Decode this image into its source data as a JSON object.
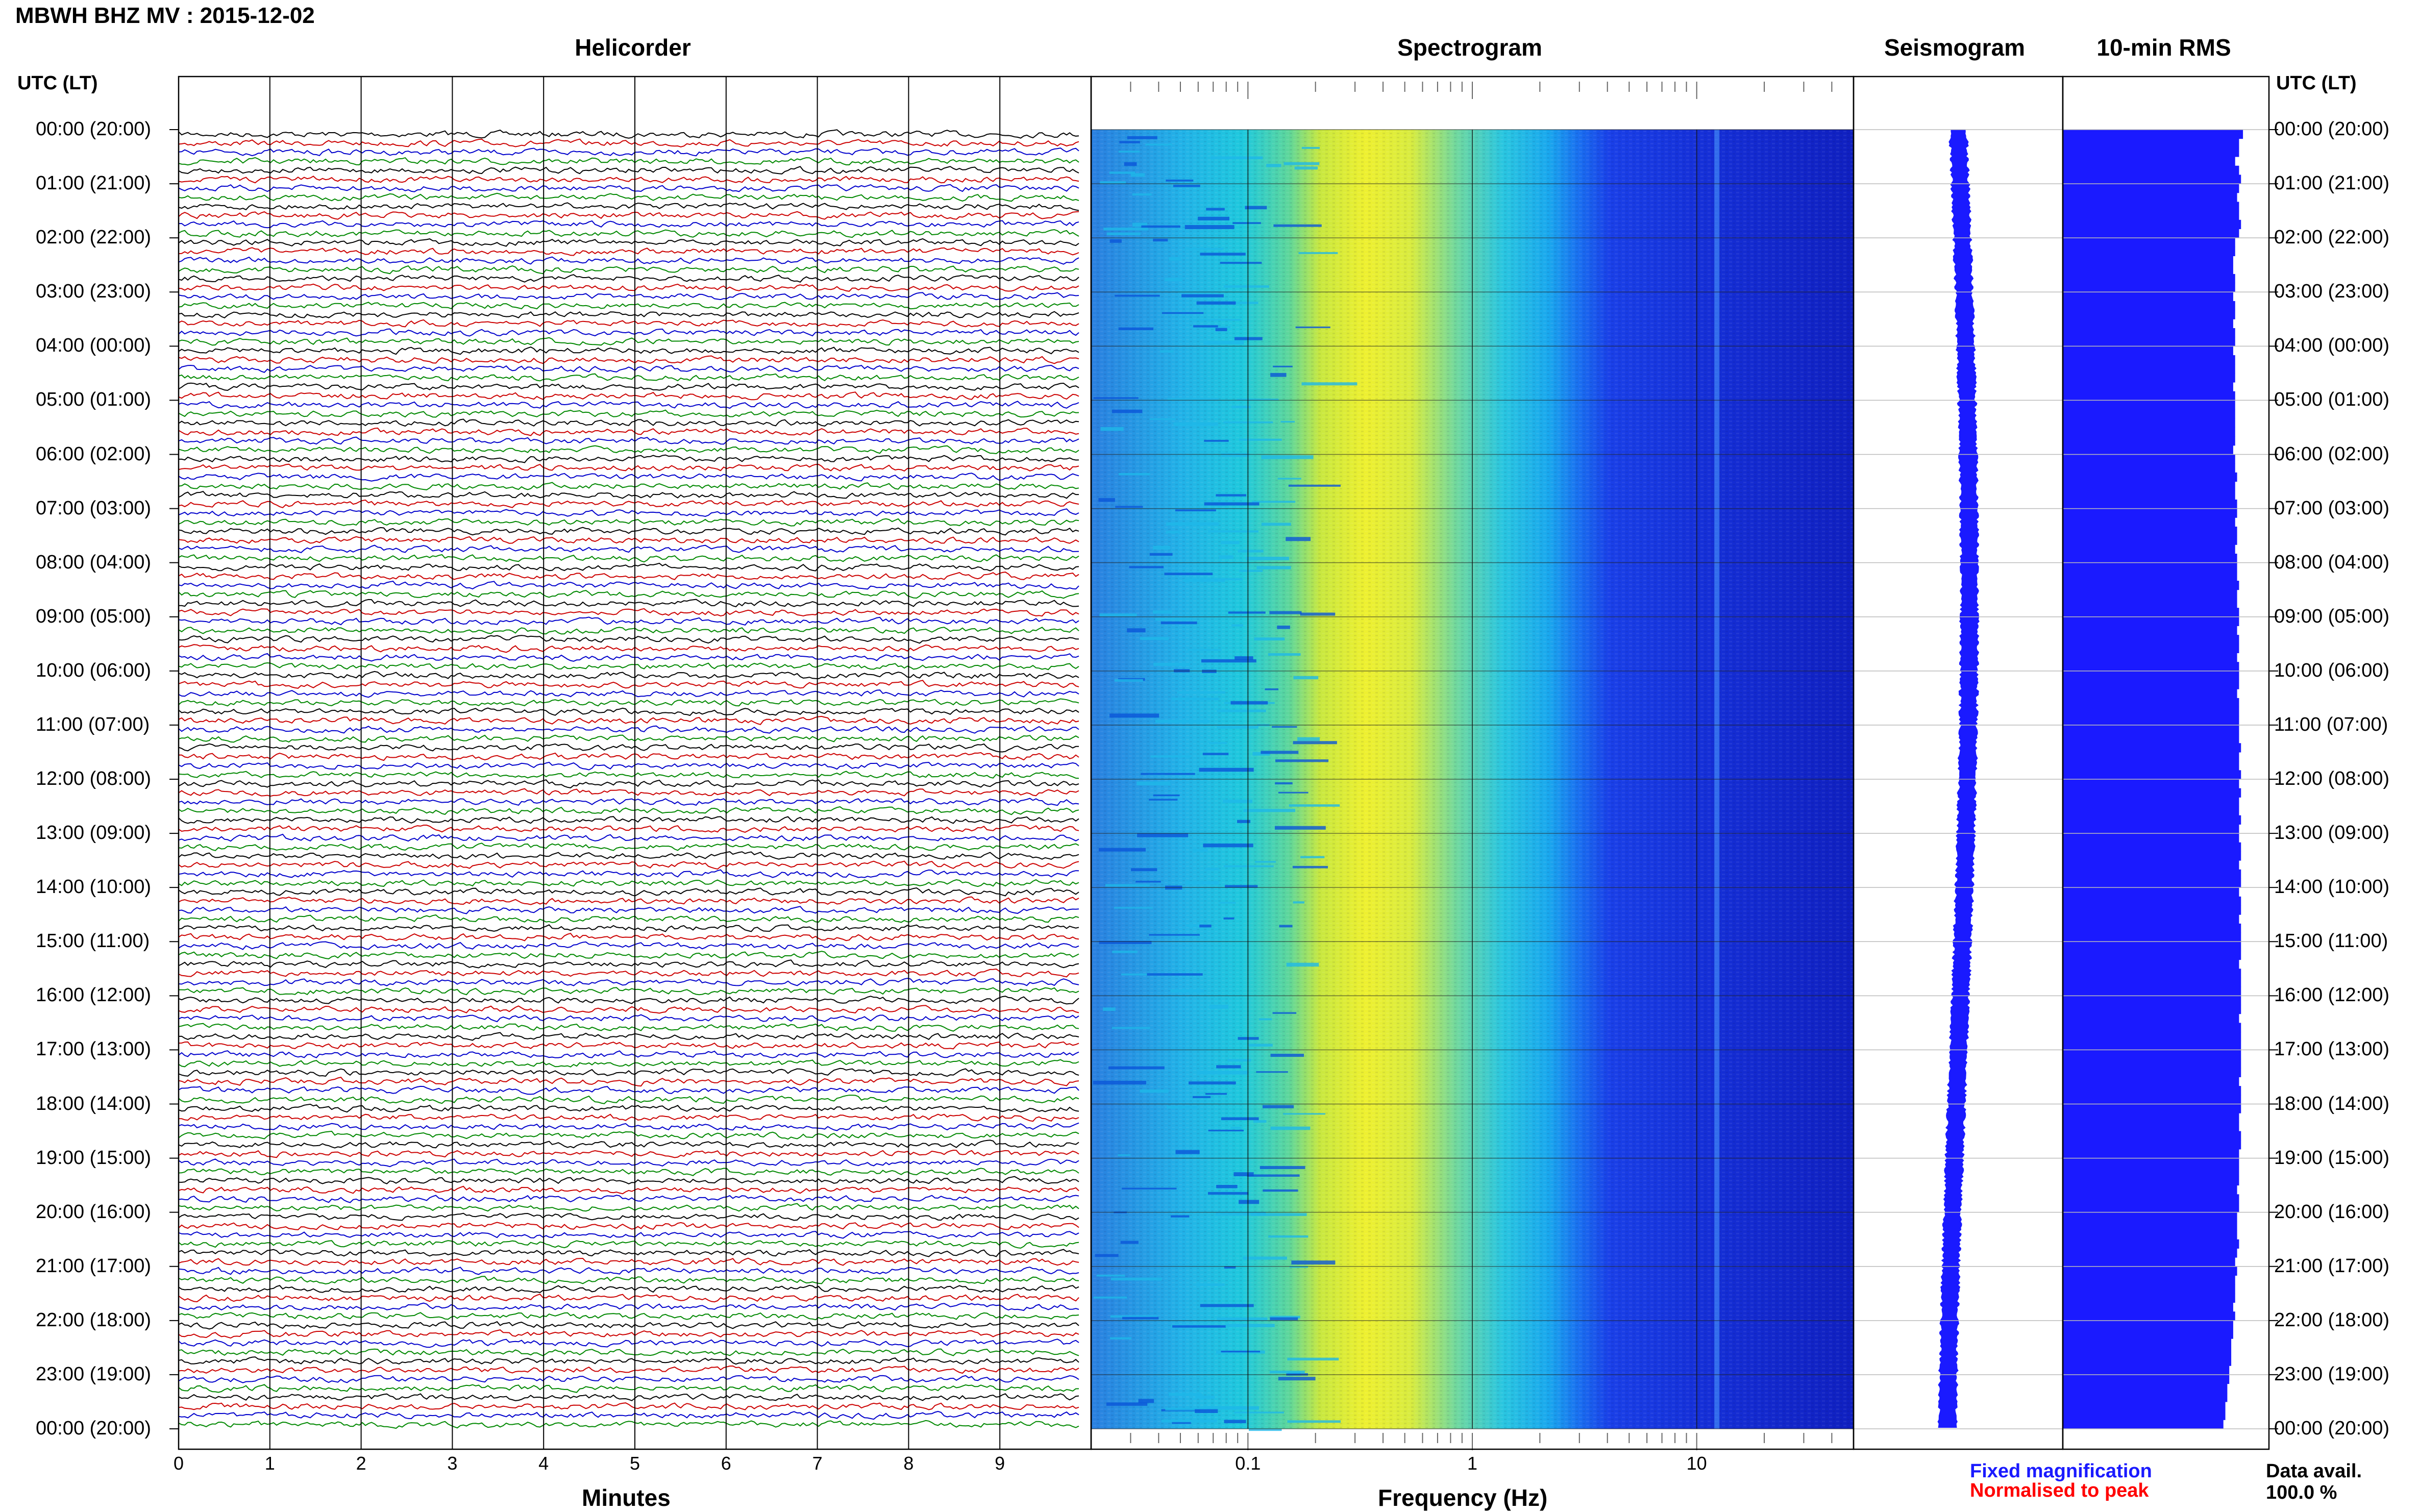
{
  "header": {
    "title": "MBWH BHZ MV : 2015-12-02",
    "utc_label_left": "UTC (LT)",
    "utc_label_right": "UTC (LT)"
  },
  "panels": {
    "helicorder": "Helicorder",
    "spectrogram": "Spectrogram",
    "seismogram": "Seismogram",
    "rms": "10-min RMS"
  },
  "time_labels": [
    "00:00 (20:00)",
    "01:00 (21:00)",
    "02:00 (22:00)",
    "03:00 (23:00)",
    "04:00 (00:00)",
    "05:00 (01:00)",
    "06:00 (02:00)",
    "07:00 (03:00)",
    "08:00 (04:00)",
    "09:00 (05:00)",
    "10:00 (06:00)",
    "11:00 (07:00)",
    "12:00 (08:00)",
    "13:00 (09:00)",
    "14:00 (10:00)",
    "15:00 (11:00)",
    "16:00 (12:00)",
    "17:00 (13:00)",
    "18:00 (14:00)",
    "19:00 (15:00)",
    "20:00 (16:00)",
    "21:00 (17:00)",
    "22:00 (18:00)",
    "23:00 (19:00)",
    "00:00 (20:00)"
  ],
  "footer": {
    "minutes_label": "Minutes",
    "frequency_label": "Frequency (Hz)",
    "legend_fixed": "Fixed magnification",
    "legend_normalised": "Normalised to peak",
    "data_avail_label": "Data avail.",
    "data_avail_value": "100.0 %"
  },
  "colors": {
    "trace_cycle": [
      "#000000",
      "#cc0000",
      "#0000cc",
      "#008800"
    ],
    "rms_bar": "#1a1aff",
    "seismogram": "#1a1aff"
  },
  "chart_data": [
    {
      "type": "line",
      "title": "Helicorder",
      "xlabel": "Minutes",
      "x_ticks": [
        "0",
        "1",
        "2",
        "3",
        "4",
        "5",
        "6",
        "7",
        "8",
        "9"
      ],
      "xlim": [
        0,
        10
      ],
      "rows_per_hour": 6,
      "hours": 24,
      "trace_colors_cycle": [
        "black",
        "red",
        "blue",
        "green"
      ]
    },
    {
      "type": "heatmap",
      "title": "Spectrogram",
      "xlabel": "Frequency (Hz)",
      "x_scale": "log",
      "x_ticks": [
        "0.1",
        "1",
        "10"
      ],
      "xlim": [
        0.02,
        50
      ],
      "y_ticks": "UTC (LT) hourly 00:00 to 00:00",
      "band_energy": [
        {
          "freq_range": [
            0.02,
            0.1
          ],
          "level": "low (cyan/blue)"
        },
        {
          "freq_range": [
            0.15,
            0.5
          ],
          "level": "peak (yellow)"
        },
        {
          "freq_range": [
            0.5,
            2
          ],
          "level": "medium (cyan)"
        },
        {
          "freq_range": [
            3,
            50
          ],
          "level": "low (dark blue)"
        }
      ]
    },
    {
      "type": "line",
      "title": "Seismogram",
      "description_values": "narrow continuous trace, nearly constant amplitude over 24 h"
    },
    {
      "type": "bar",
      "title": "10-min RMS",
      "orientation": "horizontal",
      "bins": 144,
      "values_relative": [
        0.92,
        0.9,
        0.9,
        0.88,
        0.9,
        0.91,
        0.9,
        0.89,
        0.9,
        0.9,
        0.91,
        0.9,
        0.88,
        0.88,
        0.87,
        0.87,
        0.88,
        0.88,
        0.87,
        0.88,
        0.88,
        0.87,
        0.88,
        0.88,
        0.87,
        0.88,
        0.88,
        0.88,
        0.87,
        0.88,
        0.88,
        0.88,
        0.88,
        0.88,
        0.88,
        0.87,
        0.88,
        0.88,
        0.89,
        0.88,
        0.88,
        0.89,
        0.89,
        0.88,
        0.89,
        0.89,
        0.88,
        0.89,
        0.89,
        0.89,
        0.9,
        0.89,
        0.89,
        0.9,
        0.9,
        0.89,
        0.9,
        0.9,
        0.89,
        0.9,
        0.9,
        0.9,
        0.89,
        0.9,
        0.9,
        0.9,
        0.9,
        0.9,
        0.91,
        0.9,
        0.9,
        0.91,
        0.9,
        0.91,
        0.9,
        0.9,
        0.91,
        0.9,
        0.9,
        0.91,
        0.91,
        0.9,
        0.91,
        0.91,
        0.9,
        0.91,
        0.91,
        0.9,
        0.91,
        0.91,
        0.91,
        0.91,
        0.9,
        0.91,
        0.91,
        0.91,
        0.91,
        0.91,
        0.9,
        0.91,
        0.91,
        0.91,
        0.91,
        0.91,
        0.91,
        0.9,
        0.91,
        0.91,
        0.91,
        0.9,
        0.9,
        0.91,
        0.91,
        0.9,
        0.9,
        0.9,
        0.9,
        0.89,
        0.9,
        0.9,
        0.89,
        0.89,
        0.89,
        0.9,
        0.89,
        0.88,
        0.89,
        0.88,
        0.88,
        0.88,
        0.87,
        0.88,
        0.87,
        0.87,
        0.86,
        0.86,
        0.86,
        0.85,
        0.85,
        0.84,
        0.84,
        0.83,
        0.83,
        0.82
      ]
    }
  ]
}
